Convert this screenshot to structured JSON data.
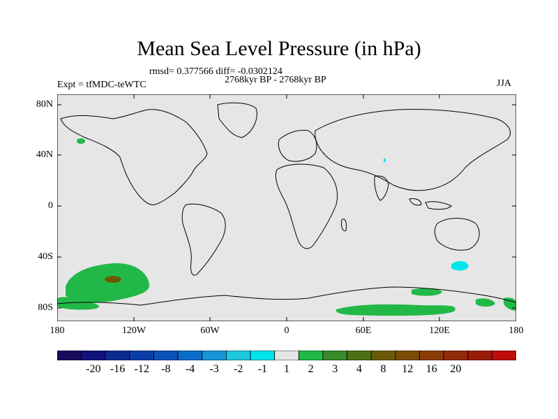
{
  "title": "Mean Sea Level Pressure (in hPa)",
  "stats": "rmsd= 0.377566 diff= -0.0302124",
  "period": "2768kyr BP - 2768kyr BP",
  "experiment": "Expt = tfMDC-teWTC",
  "season": "JJA",
  "lat_labels": [
    "80N",
    "40N",
    "0",
    "40S",
    "80S"
  ],
  "lon_labels": [
    "180",
    "120W",
    "60W",
    "0",
    "60E",
    "120E",
    "180"
  ],
  "colorbar": {
    "labels": [
      "-20",
      "-16",
      "-12",
      "-8",
      "-4",
      "-3",
      "-2",
      "-1",
      "1",
      "2",
      "3",
      "4",
      "8",
      "12",
      "16",
      "20"
    ],
    "colors": [
      "#1a0a5c",
      "#12127a",
      "#0c2a90",
      "#0a3ea8",
      "#0a52b8",
      "#0a6ccc",
      "#1496d8",
      "#1ec8e0",
      "#00e4ec",
      "#e6e6e6",
      "#22b848",
      "#3a8a2a",
      "#4e7014",
      "#6a5a08",
      "#7a4c06",
      "#8a3c06",
      "#922c06",
      "#9a1c06",
      "#c00c0a"
    ]
  },
  "colors": {
    "ocean_bg": "#e6e6e6",
    "positive_1_2": "#22b848",
    "positive_3_4": "#6a5a08",
    "negative_1_2": "#00e4ec"
  }
}
